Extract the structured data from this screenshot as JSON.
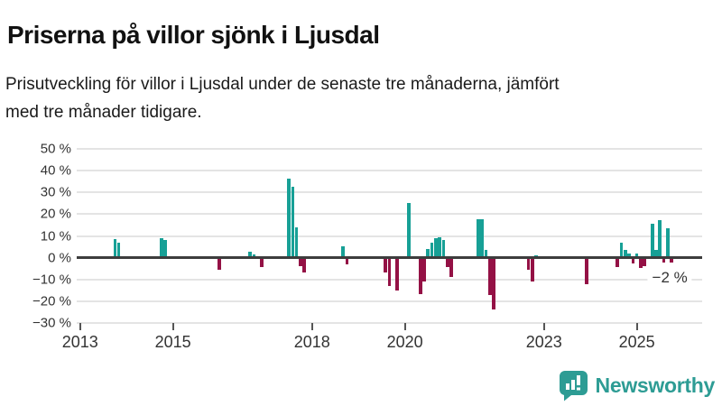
{
  "header": {
    "title": "Priserna på villor sjönk i Ljusdal",
    "subtitle_lines": [
      "Prisutveckling för villor i Ljusdal under de senaste tre månaderna, jämfört",
      "med tre månader tidigare."
    ]
  },
  "chart_data": {
    "type": "bar",
    "title": "Priserna på villor sjönk i Ljusdal",
    "unit": "%",
    "x_axis": {
      "start": "2013-01",
      "end": "2025-10",
      "tick_years": [
        2013,
        2015,
        2018,
        2020,
        2023,
        2025
      ]
    },
    "y_axis": {
      "min": -30,
      "max": 50,
      "tick_values": [
        50,
        40,
        30,
        20,
        10,
        0,
        -10,
        -20,
        -30
      ],
      "tick_labels": [
        "50 %",
        "40 %",
        "30 %",
        "20 %",
        "10 %",
        "0 %",
        "−10 %",
        "−20 %",
        "−30 %"
      ],
      "grid": true
    },
    "legend": "none",
    "bars": [
      {
        "date": "2013-10",
        "value": 8.5
      },
      {
        "date": "2013-11",
        "value": 6.8
      },
      {
        "date": "2014-10",
        "value": 8.8
      },
      {
        "date": "2014-11",
        "value": 8.3
      },
      {
        "date": "2016-01",
        "value": -5.5
      },
      {
        "date": "2016-09",
        "value": 2.7
      },
      {
        "date": "2016-10",
        "value": 1.6
      },
      {
        "date": "2016-12",
        "value": -4.4
      },
      {
        "date": "2017-07",
        "value": 36.3
      },
      {
        "date": "2017-08",
        "value": 32.5
      },
      {
        "date": "2017-09",
        "value": 14.0
      },
      {
        "date": "2017-10",
        "value": -4.0
      },
      {
        "date": "2017-11",
        "value": -6.6
      },
      {
        "date": "2018-09",
        "value": 5.2
      },
      {
        "date": "2018-10",
        "value": -3.0
      },
      {
        "date": "2019-08",
        "value": -6.8
      },
      {
        "date": "2019-09",
        "value": -13.1
      },
      {
        "date": "2019-11",
        "value": -15.0
      },
      {
        "date": "2020-02",
        "value": 25.0
      },
      {
        "date": "2020-05",
        "value": -16.5
      },
      {
        "date": "2020-06",
        "value": -11.0
      },
      {
        "date": "2020-07",
        "value": 4.1
      },
      {
        "date": "2020-08",
        "value": 6.9
      },
      {
        "date": "2020-09",
        "value": 9.1
      },
      {
        "date": "2020-10",
        "value": 9.4
      },
      {
        "date": "2020-11",
        "value": 8.3
      },
      {
        "date": "2020-12",
        "value": -4.1
      },
      {
        "date": "2021-01",
        "value": -8.8
      },
      {
        "date": "2021-08",
        "value": 17.6
      },
      {
        "date": "2021-09",
        "value": 17.6
      },
      {
        "date": "2021-10",
        "value": 3.6
      },
      {
        "date": "2021-11",
        "value": -17.2
      },
      {
        "date": "2021-12",
        "value": -23.6
      },
      {
        "date": "2022-09",
        "value": -5.6
      },
      {
        "date": "2022-10",
        "value": -10.7
      },
      {
        "date": "2022-11",
        "value": 1.3
      },
      {
        "date": "2023-12",
        "value": -12.0
      },
      {
        "date": "2024-08",
        "value": -4.4
      },
      {
        "date": "2024-09",
        "value": 6.9
      },
      {
        "date": "2024-10",
        "value": 3.8
      },
      {
        "date": "2024-11",
        "value": 1.8
      },
      {
        "date": "2024-12",
        "value": -2.6
      },
      {
        "date": "2025-01",
        "value": 1.9
      },
      {
        "date": "2025-02",
        "value": -4.7
      },
      {
        "date": "2025-03",
        "value": -3.7
      },
      {
        "date": "2025-05",
        "value": 15.5
      },
      {
        "date": "2025-06",
        "value": 3.6
      },
      {
        "date": "2025-07",
        "value": 17.1
      },
      {
        "date": "2025-08",
        "value": -2.3
      },
      {
        "date": "2025-09",
        "value": 13.6
      },
      {
        "date": "2025-10",
        "value": -2.0
      }
    ],
    "annotation": {
      "text": "−2 %",
      "attaches_to": "2025-10"
    },
    "colors": {
      "positive": "#17a096",
      "negative": "#941145",
      "grid": "#e4e4e4",
      "zero_line": "#3d3d3d",
      "axis_text": "#333333"
    }
  },
  "footer": {
    "brand": "Newsworthy",
    "brand_color": "#2d9c94",
    "logo_icon": "bar-chart-speech-bubble-icon"
  }
}
